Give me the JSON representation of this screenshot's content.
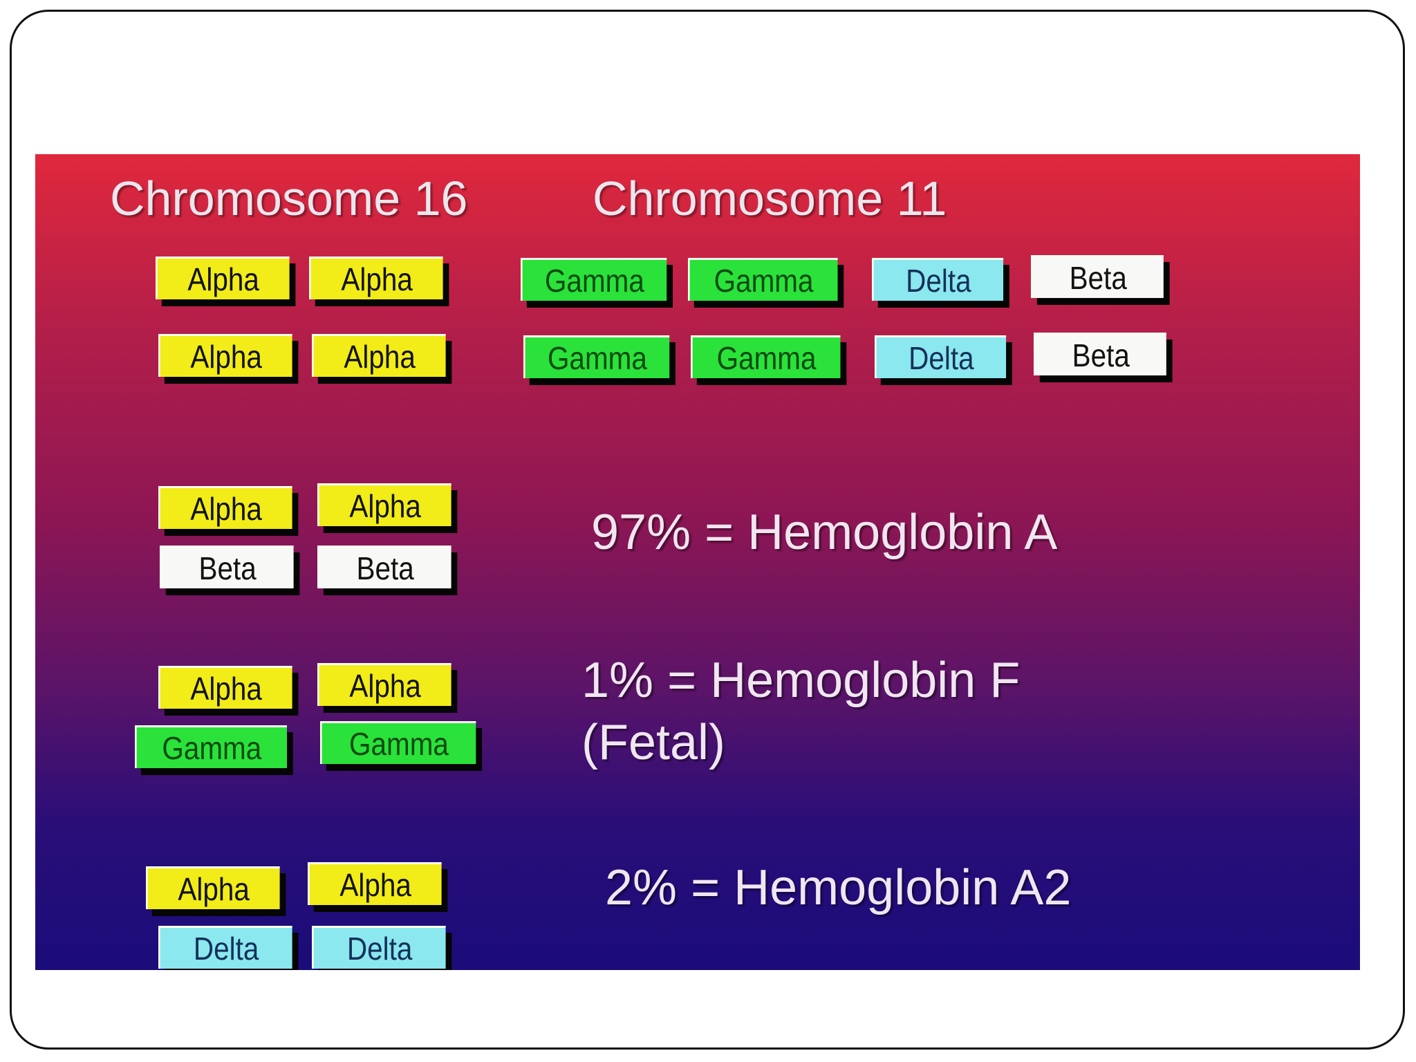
{
  "headings": {
    "chromosome_16": "Chromosome 16",
    "chromosome_11": "Chromosome 11"
  },
  "gene_labels": {
    "alpha": "Alpha",
    "beta": "Beta",
    "gamma": "Gamma",
    "delta": "Delta"
  },
  "hemoglobins": {
    "a": "97% = Hemoglobin A",
    "f_line1": "1% = Hemoglobin F",
    "f_line2": "(Fetal)",
    "a2": "2% = Hemoglobin A2"
  },
  "colors": {
    "alpha": "#f2ec18",
    "beta": "#f8f8f6",
    "gamma": "#2ae23a",
    "delta": "#8ae8ee",
    "background_top": "#e0283c",
    "background_bottom": "#1a0c7a"
  }
}
